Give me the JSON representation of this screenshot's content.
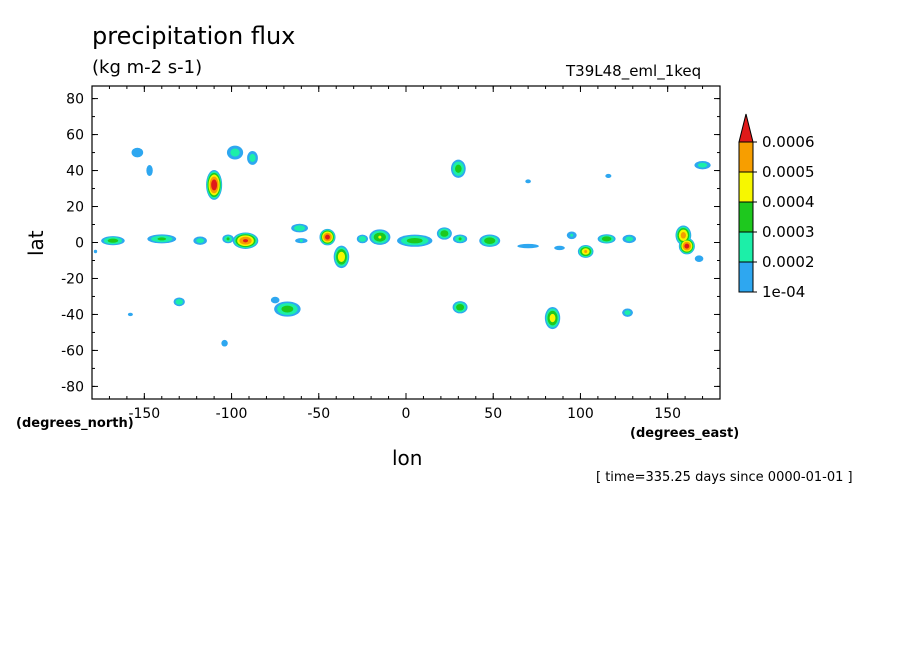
{
  "chart_data": {
    "type": "heatmap",
    "title": "precipitation flux",
    "units": "(kg m-2 s-1)",
    "dataset": "T39L48_eml_1keq",
    "xlabel": "lon",
    "ylabel": "lat",
    "x_units_label": "(degrees_east)",
    "y_units_label": "(degrees_north)",
    "timestamp": "[ time=335.25 days since 0000-01-01 ]",
    "xlim": [
      -180,
      180
    ],
    "ylim": [
      -87,
      87
    ],
    "x_ticks": [
      -150,
      -100,
      -50,
      0,
      50,
      100,
      150
    ],
    "x_tick_labels": [
      "-150",
      "-100",
      "-50",
      "0",
      "50",
      "100",
      "150"
    ],
    "y_ticks": [
      80,
      60,
      40,
      20,
      0,
      -20,
      -40,
      -60,
      -80
    ],
    "y_tick_labels": [
      "80",
      "60",
      "40",
      "20",
      "0",
      "-20",
      "-40",
      "-60",
      "-80"
    ],
    "levels": [
      0.0001,
      0.0002,
      0.0003,
      0.0004,
      0.0005,
      0.0006
    ],
    "level_labels": [
      "1e-04",
      "0.0002",
      "0.0003",
      "0.0004",
      "0.0005",
      "0.0006"
    ],
    "level_colors": [
      "#2ea7f0",
      "#1cefa8",
      "#1ec81e",
      "#f7f700",
      "#f79e00",
      "#e01a1a"
    ],
    "blobs": [
      {
        "lon": -168,
        "lat": 1,
        "rlon": 8,
        "rlat": 3,
        "max": 0.00035
      },
      {
        "lon": -140,
        "lat": 2,
        "rlon": 10,
        "rlat": 3,
        "max": 0.00032
      },
      {
        "lon": -118,
        "lat": 1,
        "rlon": 5,
        "rlat": 3,
        "max": 0.00025
      },
      {
        "lon": -102,
        "lat": 2,
        "rlon": 4,
        "rlat": 3,
        "max": 0.0003
      },
      {
        "lon": -92,
        "lat": 1,
        "rlon": 8,
        "rlat": 5,
        "max": 0.00062
      },
      {
        "lon": -61,
        "lat": 8,
        "rlon": 6,
        "rlat": 3,
        "max": 0.00028
      },
      {
        "lon": -60,
        "lat": 1,
        "rlon": 5,
        "rlat": 2,
        "max": 0.0002
      },
      {
        "lon": -45,
        "lat": 3,
        "rlon": 5,
        "rlat": 5,
        "max": 0.00065
      },
      {
        "lon": -37,
        "lat": -8,
        "rlon": 5,
        "rlat": 7,
        "max": 0.00048
      },
      {
        "lon": -25,
        "lat": 2,
        "rlon": 4,
        "rlat": 3,
        "max": 0.00028
      },
      {
        "lon": -15,
        "lat": 3,
        "rlon": 7,
        "rlat": 5,
        "max": 0.0004
      },
      {
        "lon": 5,
        "lat": 1,
        "rlon": 12,
        "rlat": 4,
        "max": 0.00035
      },
      {
        "lon": 22,
        "lat": 5,
        "rlon": 5,
        "rlat": 4,
        "max": 0.00038
      },
      {
        "lon": 31,
        "lat": 2,
        "rlon": 5,
        "rlat": 3,
        "max": 0.0003
      },
      {
        "lon": 48,
        "lat": 1,
        "rlon": 7,
        "rlat": 4,
        "max": 0.00038
      },
      {
        "lon": 70,
        "lat": -2,
        "rlon": 10,
        "rlat": 2,
        "max": 0.00016
      },
      {
        "lon": 88,
        "lat": -3,
        "rlon": 5,
        "rlat": 2,
        "max": 0.00016
      },
      {
        "lon": 95,
        "lat": 4,
        "rlon": 4,
        "rlat": 3,
        "max": 0.0002
      },
      {
        "lon": 103,
        "lat": -5,
        "rlon": 5,
        "rlat": 4,
        "max": 0.0005
      },
      {
        "lon": 115,
        "lat": 2,
        "rlon": 6,
        "rlat": 3,
        "max": 0.00038
      },
      {
        "lon": 128,
        "lat": 2,
        "rlon": 5,
        "rlat": 3,
        "max": 0.00025
      },
      {
        "lon": 159,
        "lat": 4,
        "rlon": 5,
        "rlat": 6,
        "max": 0.00055
      },
      {
        "lon": 161,
        "lat": -2,
        "rlon": 5,
        "rlat": 5,
        "max": 0.00065
      },
      {
        "lon": 168,
        "lat": -9,
        "rlon": 4,
        "rlat": 3,
        "max": 0.00016
      },
      {
        "lon": -110,
        "lat": 32,
        "rlon": 5,
        "rlat": 9,
        "max": 0.00068
      },
      {
        "lon": -98,
        "lat": 50,
        "rlon": 6,
        "rlat": 5,
        "max": 0.00025
      },
      {
        "lon": -88,
        "lat": 47,
        "rlon": 4,
        "rlat": 5,
        "max": 0.00025
      },
      {
        "lon": -154,
        "lat": 50,
        "rlon": 5,
        "rlat": 4,
        "max": 0.00018
      },
      {
        "lon": -147,
        "lat": 40,
        "rlon": 3,
        "rlat": 5,
        "max": 0.00016
      },
      {
        "lon": 30,
        "lat": 41,
        "rlon": 5,
        "rlat": 6,
        "max": 0.00035
      },
      {
        "lon": 170,
        "lat": 43,
        "rlon": 6,
        "rlat": 3,
        "max": 0.00025
      },
      {
        "lon": 116,
        "lat": 37,
        "rlon": 3,
        "rlat": 2,
        "max": 0.00015
      },
      {
        "lon": 70,
        "lat": 34,
        "rlon": 3,
        "rlat": 2,
        "max": 0.00014
      },
      {
        "lon": -130,
        "lat": -33,
        "rlon": 4,
        "rlat": 3,
        "max": 0.00028
      },
      {
        "lon": -68,
        "lat": -37,
        "rlon": 9,
        "rlat": 5,
        "max": 0.00035
      },
      {
        "lon": -75,
        "lat": -32,
        "rlon": 4,
        "rlat": 3,
        "max": 0.00016
      },
      {
        "lon": 31,
        "lat": -36,
        "rlon": 5,
        "rlat": 4,
        "max": 0.00038
      },
      {
        "lon": 84,
        "lat": -42,
        "rlon": 5,
        "rlat": 7,
        "max": 0.00045
      },
      {
        "lon": 127,
        "lat": -39,
        "rlon": 4,
        "rlat": 3,
        "max": 0.00025
      },
      {
        "lon": -104,
        "lat": -56,
        "rlon": 3,
        "rlat": 3,
        "max": 0.00016
      },
      {
        "lon": -158,
        "lat": -40,
        "rlon": 3,
        "rlat": 2,
        "max": 0.00013
      },
      {
        "lon": -178,
        "lat": -5,
        "rlon": 2,
        "rlat": 2,
        "max": 0.00013
      }
    ]
  }
}
